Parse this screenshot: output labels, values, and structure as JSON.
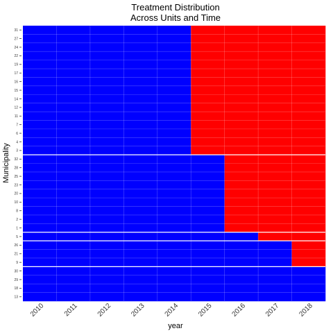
{
  "chart_data": {
    "type": "heatmap",
    "title": "Treatment Distribution",
    "subtitle": "Across Units and Time",
    "xlabel": "year",
    "ylabel": "Municipality",
    "years": [
      "2010",
      "2011",
      "2012",
      "2013",
      "2014",
      "2015",
      "2016",
      "2017",
      "2018"
    ],
    "units": [
      "31",
      "27",
      "24",
      "22",
      "19",
      "17",
      "16",
      "15",
      "14",
      "12",
      "11",
      "7",
      "6",
      "4",
      "3",
      "32",
      "28",
      "25",
      "23",
      "20",
      "10",
      "8",
      "2",
      "1",
      "5",
      "26",
      "21",
      "9",
      "30",
      "29",
      "18",
      "13"
    ],
    "first_treated_year": [
      "2015",
      "2015",
      "2015",
      "2015",
      "2015",
      "2015",
      "2015",
      "2015",
      "2015",
      "2015",
      "2015",
      "2015",
      "2015",
      "2015",
      "2015",
      "2016",
      "2016",
      "2016",
      "2016",
      "2016",
      "2016",
      "2016",
      "2016",
      "2016",
      "2017",
      "2018",
      "2018",
      "2018",
      null,
      null,
      null,
      null
    ],
    "legend": {
      "untreated_color": "#0000ff",
      "treated_color": "#ff0000"
    }
  }
}
